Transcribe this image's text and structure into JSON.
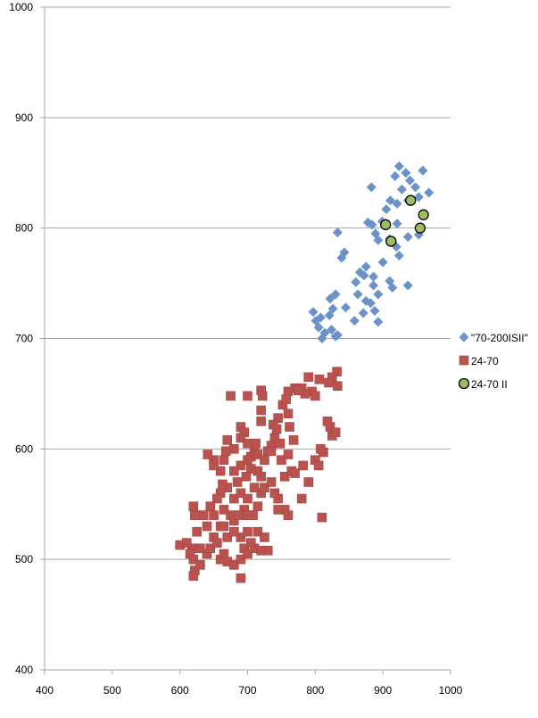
{
  "chart_data": {
    "type": "scatter",
    "title": "",
    "xlabel": "",
    "ylabel": "",
    "xlim": [
      400,
      1000
    ],
    "ylim": [
      400,
      1000
    ],
    "xticks": [
      400,
      500,
      600,
      700,
      800,
      900,
      1000
    ],
    "yticks": [
      400,
      500,
      600,
      700,
      800,
      900,
      1000
    ],
    "grid": "horizontal",
    "legend_position": "right",
    "series": [
      {
        "name": "\"70-200ISII\"",
        "marker": "diamond",
        "color": "#6b93c9",
        "points": [
          [
            924,
            856
          ],
          [
            934,
            850
          ],
          [
            940,
            843
          ],
          [
            959,
            852
          ],
          [
            918,
            847
          ],
          [
            948,
            837
          ],
          [
            928,
            835
          ],
          [
            911,
            825
          ],
          [
            937,
            825
          ],
          [
            953,
            828
          ],
          [
            968,
            832
          ],
          [
            883,
            837
          ],
          [
            921,
            822
          ],
          [
            905,
            817
          ],
          [
            899,
            806
          ],
          [
            921,
            804
          ],
          [
            884,
            803
          ],
          [
            878,
            805
          ],
          [
            889,
            795
          ],
          [
            910,
            790
          ],
          [
            937,
            792
          ],
          [
            953,
            794
          ],
          [
            833,
            796
          ],
          [
            920,
            783
          ],
          [
            893,
            789
          ],
          [
            900,
            769
          ],
          [
            924,
            775
          ],
          [
            843,
            778
          ],
          [
            839,
            773
          ],
          [
            875,
            765
          ],
          [
            872,
            757
          ],
          [
            886,
            756
          ],
          [
            866,
            760
          ],
          [
            860,
            751
          ],
          [
            886,
            748
          ],
          [
            830,
            740
          ],
          [
            863,
            740
          ],
          [
            893,
            740
          ],
          [
            910,
            752
          ],
          [
            937,
            748
          ],
          [
            914,
            746
          ],
          [
            845,
            728
          ],
          [
            875,
            734
          ],
          [
            826,
            727
          ],
          [
            821,
            721
          ],
          [
            871,
            723
          ],
          [
            858,
            716
          ],
          [
            888,
            725
          ],
          [
            882,
            732
          ],
          [
            808,
            719
          ],
          [
            805,
            710
          ],
          [
            814,
            705
          ],
          [
            824,
            708
          ],
          [
            833,
            703
          ],
          [
            810,
            700
          ],
          [
            830,
            702
          ],
          [
            797,
            724
          ],
          [
            801,
            716
          ],
          [
            822,
            736
          ],
          [
            893,
            715
          ]
        ]
      },
      {
        "name": "24-70",
        "marker": "square",
        "color": "#b9534f",
        "points": [
          [
            832,
            670
          ],
          [
            825,
            665
          ],
          [
            833,
            657
          ],
          [
            806,
            663
          ],
          [
            820,
            660
          ],
          [
            790,
            665
          ],
          [
            795,
            652
          ],
          [
            780,
            655
          ],
          [
            770,
            655
          ],
          [
            760,
            652
          ],
          [
            785,
            650
          ],
          [
            800,
            648
          ],
          [
            775,
            653
          ],
          [
            752,
            640
          ],
          [
            745,
            628
          ],
          [
            738,
            622
          ],
          [
            760,
            632
          ],
          [
            757,
            645
          ],
          [
            743,
            618
          ],
          [
            822,
            620
          ],
          [
            825,
            612
          ],
          [
            830,
            615
          ],
          [
            818,
            625
          ],
          [
            800,
            590
          ],
          [
            805,
            585
          ],
          [
            812,
            597
          ],
          [
            808,
            600
          ],
          [
            762,
            620
          ],
          [
            768,
            608
          ],
          [
            740,
            610
          ],
          [
            720,
            653
          ],
          [
            722,
            648
          ],
          [
            720,
            635
          ],
          [
            700,
            648
          ],
          [
            675,
            648
          ],
          [
            690,
            620
          ],
          [
            695,
            615
          ],
          [
            710,
            600
          ],
          [
            712,
            605
          ],
          [
            690,
            610
          ],
          [
            670,
            608
          ],
          [
            680,
            600
          ],
          [
            665,
            590
          ],
          [
            660,
            580
          ],
          [
            650,
            590
          ],
          [
            641,
            595
          ],
          [
            668,
            598
          ],
          [
            700,
            605
          ],
          [
            705,
            593
          ],
          [
            715,
            595
          ],
          [
            730,
            598
          ],
          [
            735,
            603
          ],
          [
            725,
            590
          ],
          [
            748,
            605
          ],
          [
            750,
            590
          ],
          [
            755,
            575
          ],
          [
            765,
            580
          ],
          [
            770,
            578
          ],
          [
            782,
            585
          ],
          [
            760,
            595
          ],
          [
            720,
            575
          ],
          [
            715,
            580
          ],
          [
            705,
            582
          ],
          [
            698,
            575
          ],
          [
            690,
            585
          ],
          [
            680,
            580
          ],
          [
            685,
            570
          ],
          [
            670,
            565
          ],
          [
            660,
            560
          ],
          [
            655,
            555
          ],
          [
            645,
            548
          ],
          [
            650,
            540
          ],
          [
            665,
            545
          ],
          [
            675,
            540
          ],
          [
            680,
            555
          ],
          [
            690,
            560
          ],
          [
            700,
            555
          ],
          [
            695,
            545
          ],
          [
            708,
            540
          ],
          [
            715,
            548
          ],
          [
            720,
            560
          ],
          [
            725,
            565
          ],
          [
            735,
            570
          ],
          [
            745,
            555
          ],
          [
            755,
            545
          ],
          [
            760,
            540
          ],
          [
            780,
            555
          ],
          [
            790,
            570
          ],
          [
            810,
            538
          ],
          [
            650,
            520
          ],
          [
            640,
            530
          ],
          [
            635,
            540
          ],
          [
            620,
            548
          ],
          [
            622,
            540
          ],
          [
            625,
            525
          ],
          [
            618,
            510
          ],
          [
            615,
            505
          ],
          [
            620,
            500
          ],
          [
            622,
            490
          ],
          [
            620,
            485
          ],
          [
            630,
            495
          ],
          [
            640,
            505
          ],
          [
            645,
            510
          ],
          [
            655,
            515
          ],
          [
            660,
            500
          ],
          [
            665,
            505
          ],
          [
            670,
            498
          ],
          [
            680,
            495
          ],
          [
            690,
            500
          ],
          [
            695,
            510
          ],
          [
            700,
            505
          ],
          [
            710,
            510
          ],
          [
            705,
            515
          ],
          [
            690,
            520
          ],
          [
            670,
            520
          ],
          [
            660,
            530
          ],
          [
            680,
            525
          ],
          [
            700,
            525
          ],
          [
            715,
            525
          ],
          [
            725,
            520
          ],
          [
            700,
            540
          ],
          [
            680,
            535
          ],
          [
            600,
            513
          ],
          [
            690,
            483
          ],
          [
            730,
            508
          ],
          [
            720,
            508
          ],
          [
            740,
            560
          ],
          [
            745,
            545
          ],
          [
            630,
            510
          ],
          [
            610,
            515
          ],
          [
            720,
            625
          ],
          [
            735,
            598
          ],
          [
            650,
            585
          ],
          [
            663,
            568
          ],
          [
            700,
            590
          ],
          [
            710,
            565
          ],
          [
            687,
            540
          ],
          [
            665,
            530
          ]
        ]
      },
      {
        "name": "24-70 II",
        "marker": "circle",
        "color": "#9fbb66",
        "points": [
          [
            904,
            803
          ],
          [
            912,
            788
          ],
          [
            941,
            825
          ],
          [
            960,
            812
          ],
          [
            955,
            800
          ]
        ]
      }
    ]
  }
}
